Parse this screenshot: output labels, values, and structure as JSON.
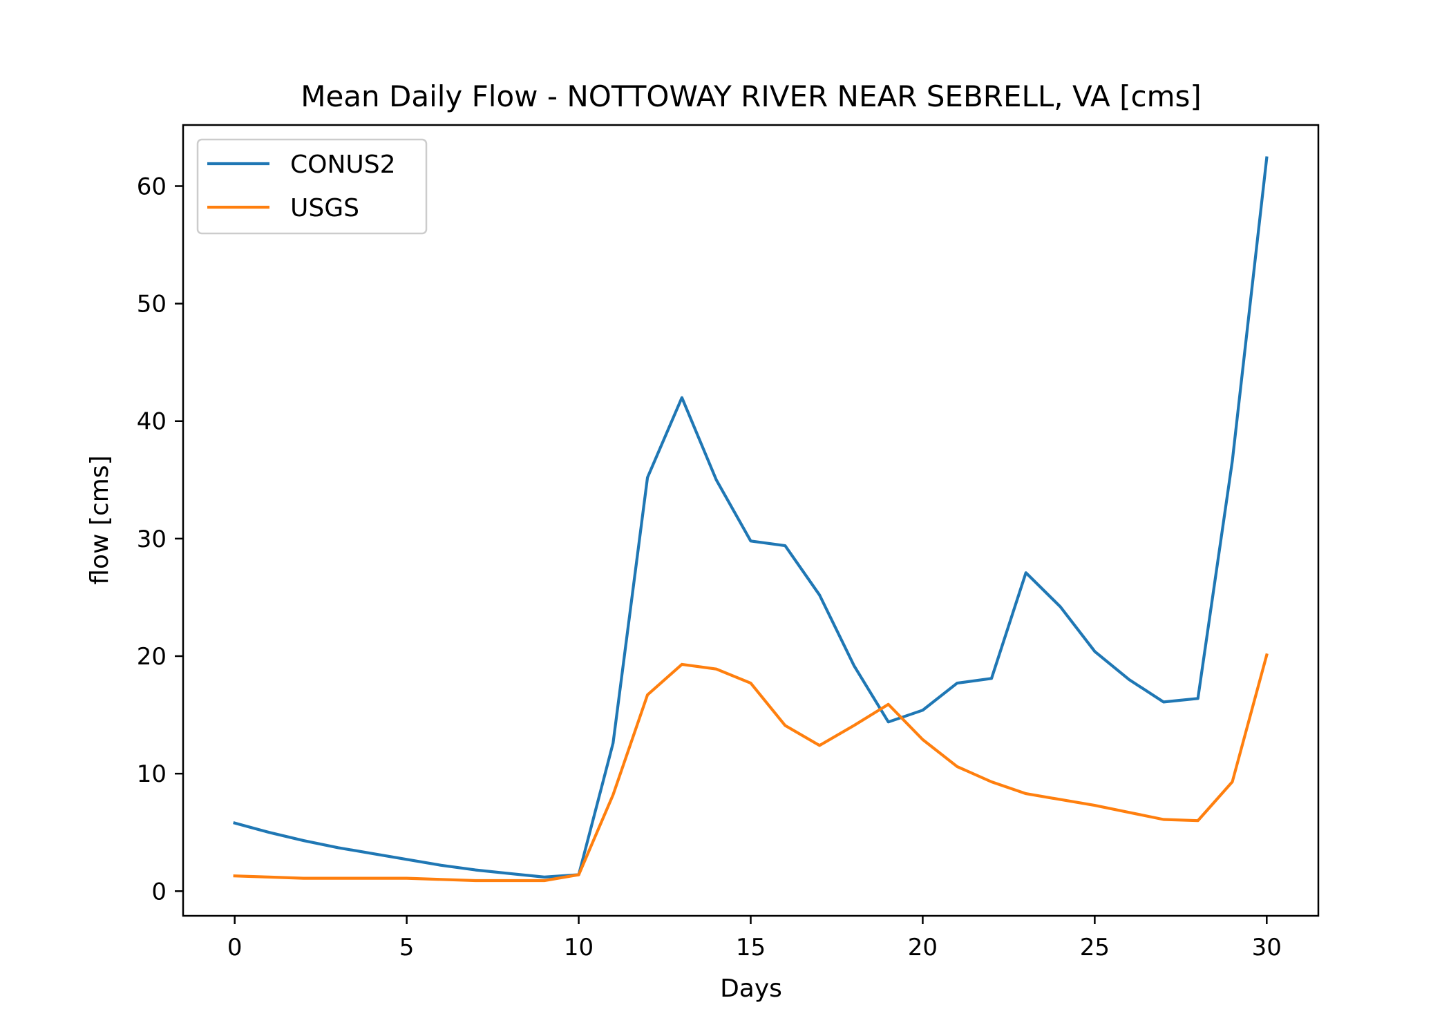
{
  "chart_data": {
    "type": "line",
    "title": "Mean Daily Flow - NOTTOWAY RIVER NEAR SEBRELL, VA [cms]",
    "xlabel": "Days",
    "ylabel": "flow [cms]",
    "xlim": [
      -1.5,
      31.5
    ],
    "ylim": [
      -2.1,
      65.2
    ],
    "xticks": [
      0,
      5,
      10,
      15,
      20,
      25,
      30
    ],
    "yticks": [
      0,
      10,
      20,
      30,
      40,
      50,
      60
    ],
    "grid": false,
    "legend": "top-left",
    "x": [
      0,
      1,
      2,
      3,
      4,
      5,
      6,
      7,
      8,
      9,
      10,
      11,
      12,
      13,
      14,
      15,
      16,
      17,
      18,
      19,
      20,
      21,
      22,
      23,
      24,
      25,
      26,
      27,
      28,
      29,
      30
    ],
    "series": [
      {
        "name": "CONUS2",
        "color": "#1f77b4",
        "values": [
          5.8,
          5.0,
          4.3,
          3.7,
          3.2,
          2.7,
          2.2,
          1.8,
          1.5,
          1.2,
          1.4,
          12.6,
          35.2,
          42.0,
          35.0,
          29.8,
          29.4,
          25.2,
          19.2,
          14.4,
          15.4,
          17.7,
          18.1,
          27.1,
          24.2,
          20.4,
          18.0,
          16.1,
          16.4,
          36.6,
          62.4
        ]
      },
      {
        "name": "USGS",
        "color": "#ff7f0e",
        "values": [
          1.3,
          1.2,
          1.1,
          1.1,
          1.1,
          1.1,
          1.0,
          0.9,
          0.9,
          0.9,
          1.4,
          8.2,
          16.7,
          19.3,
          18.9,
          17.7,
          14.1,
          12.4,
          14.1,
          15.9,
          12.9,
          10.6,
          9.3,
          8.3,
          7.8,
          7.3,
          6.7,
          6.1,
          6.0,
          9.3,
          20.1
        ]
      }
    ]
  }
}
